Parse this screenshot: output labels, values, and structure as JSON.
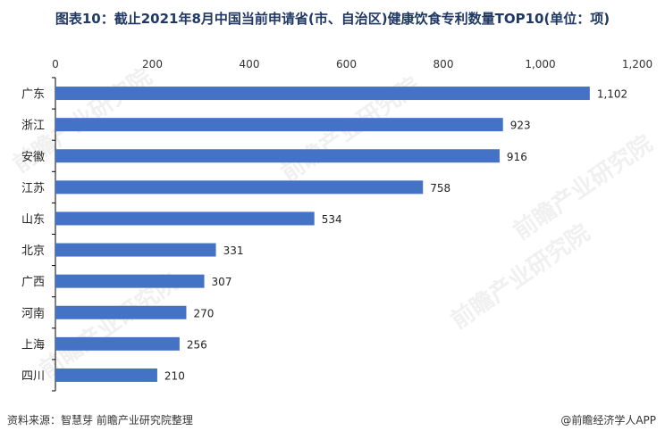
{
  "title": "图表10：截止2021年8月中国当前申请省(市、自治区)健康饮食专利数量TOP10(单位：项)",
  "footer": {
    "source": "资料来源：智慧芽 前瞻产业研究院整理",
    "brand": "@前瞻经济学人APP"
  },
  "watermark": "前瞻产业研究院",
  "colors": {
    "bar": "#4472c4",
    "title": "#1f3864",
    "axis": "#000000"
  },
  "chart_data": {
    "type": "bar",
    "orientation": "horizontal",
    "categories": [
      "广东",
      "浙江",
      "安徽",
      "江苏",
      "山东",
      "北京",
      "广西",
      "河南",
      "上海",
      "四川"
    ],
    "values": [
      1102,
      923,
      916,
      758,
      534,
      331,
      307,
      270,
      256,
      210
    ],
    "value_labels": [
      "1,102",
      "923",
      "916",
      "758",
      "534",
      "331",
      "307",
      "270",
      "256",
      "210"
    ],
    "x_ticks": [
      0,
      200,
      400,
      600,
      800,
      1000,
      1200
    ],
    "x_tick_labels": [
      "0",
      "200",
      "400",
      "600",
      "800",
      "1,000",
      "1,200"
    ],
    "xlim": [
      0,
      1200
    ],
    "axis_position": "top",
    "grid": false,
    "legend": "none"
  }
}
